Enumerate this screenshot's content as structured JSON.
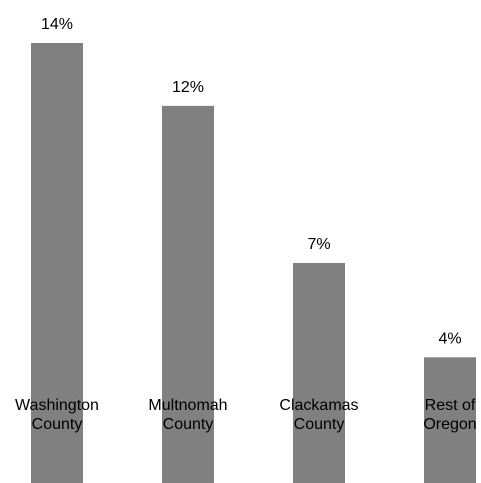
{
  "chart_data": {
    "type": "bar",
    "categories": [
      "Washington County",
      "Multnomah County",
      "Clackamas County",
      "Rest of Oregon"
    ],
    "category_lines": [
      [
        "Washington",
        "County"
      ],
      [
        "Multnomah",
        "County"
      ],
      [
        "Clackamas",
        "County"
      ],
      [
        "Rest of",
        "Oregon"
      ]
    ],
    "values": [
      14,
      12,
      7,
      4
    ],
    "value_labels": [
      "14%",
      "12%",
      "7%",
      "4%"
    ],
    "ylim": [
      0,
      14
    ],
    "grid": false,
    "colors": {
      "bar": "#808080",
      "text": "#000000"
    }
  }
}
